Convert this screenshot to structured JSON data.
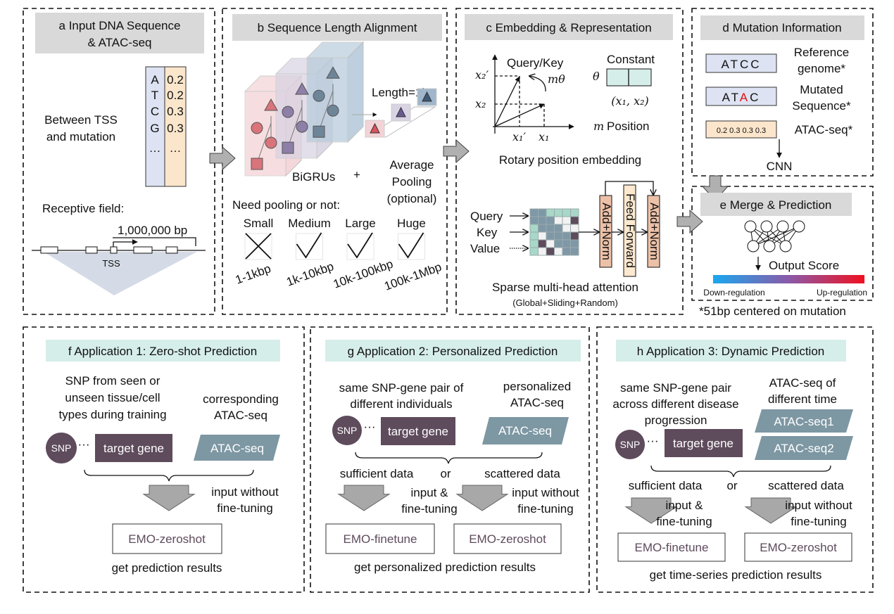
{
  "panel_a": {
    "title_line1": "a Input DNA Sequence",
    "title_line2": "& ATAC-seq",
    "bases": [
      "A",
      "T",
      "C",
      "G",
      "…"
    ],
    "atac_values": [
      "0.2",
      "0.2",
      "0.3",
      "0.3",
      "…"
    ],
    "between_line1": "Between TSS",
    "between_line2": "and mutation",
    "receptive_field": "Receptive field:",
    "bp_label": "1,000,000 bp",
    "tss": "TSS"
  },
  "panel_b": {
    "title": "b Sequence Length Alignment",
    "length": "Length=1k",
    "bigrus": "BiGRUs",
    "plus": "+",
    "pooling_line1": "Average",
    "pooling_line2": "Pooling",
    "pooling_line3": "(optional)",
    "need_pooling": "Need pooling or not:",
    "sizes": [
      {
        "label": "Small",
        "range": "1-1kbp",
        "pooling": false
      },
      {
        "label": "Medium",
        "range": "1k-10kbp",
        "pooling": true
      },
      {
        "label": "Large",
        "range": "10k-100kbp",
        "pooling": true
      },
      {
        "label": "Huge",
        "range": "100k-1Mbp",
        "pooling": true
      }
    ]
  },
  "panel_c": {
    "title": "c Embedding & Representation",
    "query_key": "Query/Key",
    "m_theta": "mθ",
    "x2_prime": "x₂′",
    "x2": "x₂",
    "x1_prime": "x₁′",
    "x1": "x₁",
    "constant": "Constant",
    "theta": "θ",
    "pair": "(x₁, x₂)",
    "m": "m",
    "position": "Position",
    "rope_caption": "Rotary position embedding",
    "query": "Query",
    "key": "Key",
    "value": "Value",
    "add_norm": "Add+Norm",
    "feed_forward": "Feed Forward",
    "attention_caption": "Sparse multi-head attention",
    "attention_sub": "(Global+Sliding+Random)"
  },
  "panel_d": {
    "title": "d Mutation Information",
    "ref_seq": "ATCC",
    "ref_line1": "Reference",
    "ref_line2": "genome*",
    "mut_seq_pre": "AT",
    "mut_seq_mut": "A",
    "mut_seq_post": "C",
    "mut_line1": "Mutated",
    "mut_line2": "Sequence*",
    "atac_values": "0.2 0.3 0.3 0.3",
    "atac_label": "ATAC-seq*",
    "cnn": "CNN"
  },
  "panel_e": {
    "title": "e Merge & Prediction",
    "output_score": "Output Score",
    "down": "Down-regulation",
    "up": "Up-regulation",
    "gradient_colors": [
      "#1aa7ef",
      "#8a5aa8",
      "#f01020"
    ]
  },
  "footnote": "*51bp centered on mutation",
  "panel_f": {
    "title": "f Application 1: Zero-shot Prediction",
    "snp_line1": "SNP from seen or",
    "snp_line2": "unseen tissue/cell",
    "snp_line3": "types during training",
    "atac_line1": "corresponding",
    "atac_line2": "ATAC-seq",
    "snp": "SNP",
    "dots": "···",
    "target_gene": "target gene",
    "atac": "ATAC-seq",
    "input_line1": "input without",
    "input_line2": "fine-tuning",
    "model": "EMO-zeroshot",
    "result": "get prediction results"
  },
  "panel_g": {
    "title": "g Application 2: Personalized Prediction",
    "pair_line1": "same SNP-gene pair of",
    "pair_line2": "different individuals",
    "atac_line1": "personalized",
    "atac_line2": "ATAC-seq",
    "snp": "SNP",
    "dots": "···",
    "target_gene": "target gene",
    "atac": "ATAC-seq",
    "sufficient": "sufficient data",
    "or": "or",
    "scattered": "scattered data",
    "ft_line1": "input &",
    "ft_line2": "fine-tuning",
    "zs_line1": "input without",
    "zs_line2": "fine-tuning",
    "model_ft": "EMO-finetune",
    "model_zs": "EMO-zeroshot",
    "result": "get personalized prediction results"
  },
  "panel_h": {
    "title": "h Application 3: Dynamic Prediction",
    "pair_line1": "same SNP-gene pair",
    "pair_line2": "across different disease",
    "pair_line3": "progression",
    "atac_line1": "ATAC-seq of",
    "atac_line2": "different time",
    "snp": "SNP",
    "dots": "···",
    "target_gene": "target gene",
    "atac1": "ATAC-seq1",
    "atac2": "ATAC-seq2",
    "sufficient": "sufficient data",
    "or": "or",
    "scattered": "scattered data",
    "ft_line1": "input &",
    "ft_line2": "fine-tuning",
    "zs_line1": "input without",
    "zs_line2": "fine-tuning",
    "model_ft": "EMO-finetune",
    "model_zs": "EMO-zeroshot",
    "result": "get time-series prediction results"
  },
  "colors": {
    "snp": "#5e4b5c",
    "target_gene": "#5e4b5c",
    "atac": "#7d97a3",
    "seq_blue": "#dde3f2",
    "seq_orange": "#fbe6cc",
    "add_norm": "#ecc1a8",
    "feed_forward": "#fde9cf",
    "mutation_red": "#e01010"
  }
}
